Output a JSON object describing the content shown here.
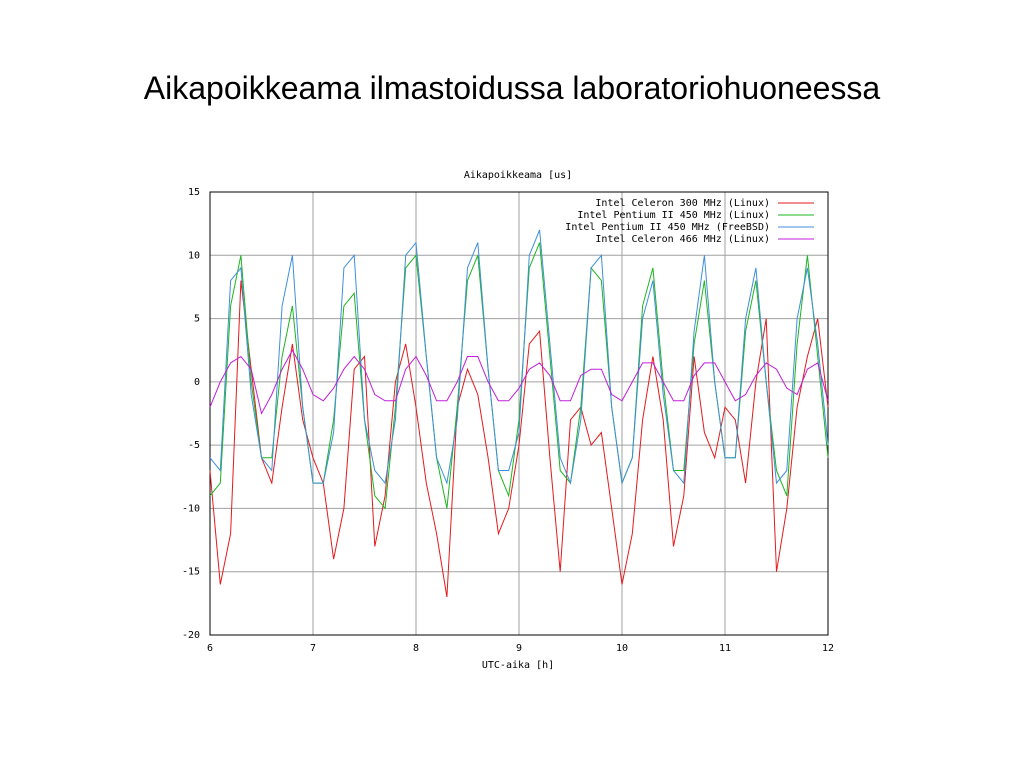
{
  "slide_title": "Aikapoikkeama ilmastoidussa laboratoriohuoneessa",
  "chart_data": {
    "type": "line",
    "title": "Aikapoikkeama [us]",
    "xlabel": "UTC-aika [h]",
    "xlim": [
      6,
      12
    ],
    "xticks": [
      6,
      7,
      8,
      9,
      10,
      11,
      12
    ],
    "ylim": [
      -20,
      15
    ],
    "yticks": [
      -20,
      -15,
      -10,
      -5,
      0,
      5,
      10,
      15
    ],
    "grid": true,
    "legend": "top-right",
    "x": [
      6,
      6.1,
      6.2,
      6.3,
      6.4,
      6.5,
      6.6,
      6.7,
      6.8,
      6.9,
      7,
      7.1,
      7.2,
      7.3,
      7.4,
      7.5,
      7.6,
      7.7,
      7.8,
      7.9,
      8,
      8.1,
      8.2,
      8.3,
      8.4,
      8.5,
      8.6,
      8.7,
      8.8,
      8.9,
      9,
      9.1,
      9.2,
      9.3,
      9.4,
      9.5,
      9.6,
      9.7,
      9.8,
      9.9,
      10,
      10.1,
      10.2,
      10.3,
      10.4,
      10.5,
      10.6,
      10.7,
      10.8,
      10.9,
      11,
      11.1,
      11.2,
      11.3,
      11.4,
      11.5,
      11.6,
      11.7,
      11.8,
      11.9,
      12
    ],
    "series": [
      {
        "name": "Intel Celeron 300 MHz (Linux)",
        "color": "#e41a1c",
        "values": [
          -7,
          -16,
          -12,
          8,
          1,
          -6,
          -8,
          -2,
          3,
          -3,
          -6,
          -8,
          -14,
          -10,
          1,
          2,
          -13,
          -9,
          0,
          3,
          -2,
          -8,
          -12,
          -17,
          -2,
          1,
          -1,
          -6,
          -12,
          -10,
          -5,
          3,
          4,
          -6,
          -15,
          -3,
          -2,
          -5,
          -4,
          -10,
          -16,
          -12,
          -3,
          2,
          -3,
          -13,
          -9,
          2,
          -4,
          -6,
          -2,
          -3,
          -8,
          0,
          5,
          -15,
          -10,
          -2,
          2,
          5,
          -2
        ]
      },
      {
        "name": "Intel Pentium II 450 MHz (Linux)",
        "color": "#1eb41e",
        "values": [
          -9,
          -8,
          6,
          10,
          0,
          -6,
          -6,
          2,
          6,
          -2,
          -8,
          -8,
          -3,
          6,
          7,
          -3,
          -9,
          -10,
          -2,
          9,
          10,
          2,
          -6,
          -10,
          -2,
          8,
          10,
          1,
          -7,
          -9,
          -3,
          9,
          11,
          2,
          -7,
          -8,
          -2,
          9,
          8,
          -2,
          -8,
          -6,
          6,
          9,
          0,
          -7,
          -7,
          3,
          8,
          0,
          -6,
          -6,
          4,
          8,
          0,
          -7,
          -9,
          3,
          10,
          2,
          -6
        ]
      },
      {
        "name": "Intel Pentium II 450 MHz (FreeBSD)",
        "color": "#3f8fdc",
        "values": [
          -6,
          -7,
          8,
          9,
          -1,
          -6,
          -7,
          6,
          10,
          -2,
          -8,
          -8,
          -4,
          9,
          10,
          -3,
          -7,
          -8,
          -3,
          10,
          11,
          2,
          -6,
          -8,
          -3,
          9,
          11,
          1,
          -7,
          -7,
          -4,
          10,
          12,
          3,
          -6,
          -8,
          -3,
          9,
          10,
          -2,
          -8,
          -6,
          5,
          8,
          -1,
          -7,
          -8,
          4,
          10,
          0,
          -6,
          -6,
          5,
          9,
          0,
          -8,
          -7,
          5,
          9,
          3,
          -5
        ]
      },
      {
        "name": "Intel Celeron 466 MHz (Linux)",
        "color": "#c020d8",
        "values": [
          -2,
          0,
          1.5,
          2,
          1,
          -2.5,
          -1,
          1,
          2.5,
          1,
          -1,
          -1.5,
          -0.5,
          1,
          2,
          1,
          -1,
          -1.5,
          -1.5,
          1,
          2,
          0.5,
          -1.5,
          -1.5,
          0,
          2,
          2,
          0,
          -1.5,
          -1.5,
          -0.5,
          1,
          1.5,
          0.5,
          -1.5,
          -1.5,
          0.5,
          1,
          1,
          -1,
          -1.5,
          0,
          1.5,
          1.5,
          0,
          -1.5,
          -1.5,
          0.5,
          1.5,
          1.5,
          0,
          -1.5,
          -1,
          0.5,
          1.5,
          1,
          -0.5,
          -1,
          1,
          1.5,
          -1.5
        ]
      }
    ]
  }
}
